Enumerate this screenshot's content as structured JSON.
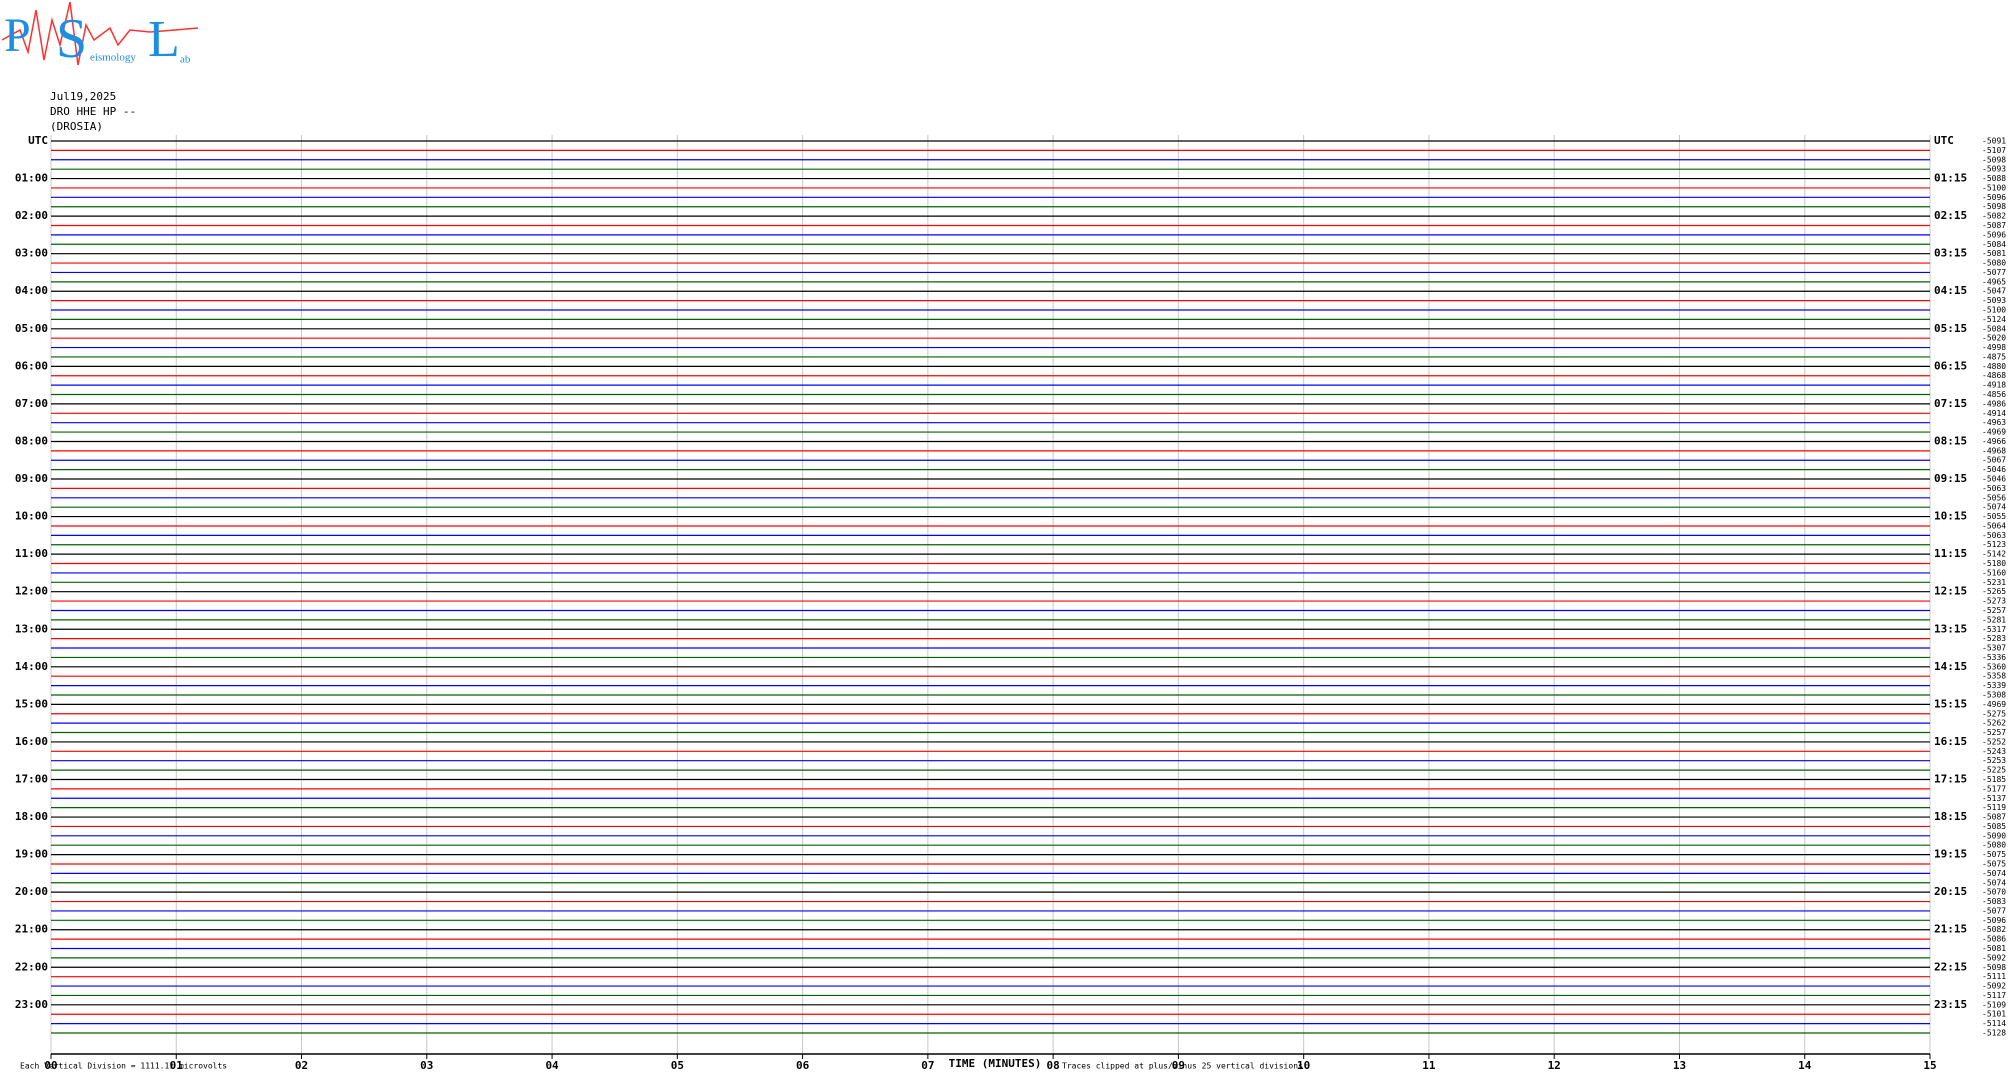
{
  "chart_data": {
    "type": "helicorder",
    "logo": {
      "p": "P",
      "s": "S",
      "l": "L",
      "sub1": "eismology",
      "sub2": "ab"
    },
    "date": "Jul19,2025",
    "station": "DRO HHE HP --",
    "site": "(DROSIA)",
    "left_labels": [
      "UTC",
      "01:00",
      "02:00",
      "03:00",
      "04:00",
      "05:00",
      "06:00",
      "07:00",
      "08:00",
      "09:00",
      "10:00",
      "11:00",
      "12:00",
      "13:00",
      "14:00",
      "15:00",
      "16:00",
      "17:00",
      "18:00",
      "19:00",
      "20:00",
      "21:00",
      "22:00",
      "23:00"
    ],
    "right_labels": [
      "UTC",
      "01:15",
      "02:15",
      "03:15",
      "04:15",
      "05:15",
      "06:15",
      "07:15",
      "08:15",
      "09:15",
      "10:15",
      "11:15",
      "12:15",
      "13:15",
      "14:15",
      "15:15",
      "16:15",
      "17:15",
      "18:15",
      "19:15",
      "20:15",
      "21:15",
      "22:15",
      "23:15"
    ],
    "trace_offsets": [
      -5091,
      -5107,
      -5098,
      -5093,
      -5088,
      -5100,
      -5096,
      -5098,
      -5082,
      -5087,
      -5096,
      -5084,
      -5081,
      -5080,
      -5077,
      -4965,
      -5047,
      -5093,
      -5100,
      -5124,
      -5084,
      -5020,
      -4998,
      -4875,
      -4880,
      -4868,
      -4918,
      -4856,
      -4986,
      -4914,
      -4963,
      -4969,
      -4966,
      -4968,
      -5067,
      -5046,
      -5046,
      -5063,
      -5056,
      -5074,
      -5055,
      -5064,
      -5063,
      -5123,
      -5142,
      -5180,
      -5160,
      -5231,
      -5265,
      -5273,
      -5257,
      -5281,
      -5317,
      -5283,
      -5307,
      -5336,
      -5360,
      -5358,
      -5339,
      -5308,
      -4969,
      -5275,
      -5262,
      -5257,
      -5252,
      -5243,
      -5253,
      -5225,
      -5185,
      -5177,
      -5137,
      -5119,
      -5087,
      -5085,
      -5090,
      -5080,
      -5075,
      -5075,
      -5074,
      -5074,
      -5070,
      -5083,
      -5077,
      -5096,
      -5082,
      -5086,
      -5081,
      -5092,
      -5098,
      -5111,
      -5092,
      -5117,
      -5109,
      -5101,
      -5114,
      -5128
    ],
    "trace_colors": [
      "#000000",
      "#ff0000",
      "#0000ff",
      "#006400"
    ],
    "xticks": [
      "00",
      "01",
      "02",
      "03",
      "04",
      "05",
      "06",
      "07",
      "08",
      "09",
      "10",
      "11",
      "12",
      "13",
      "14",
      "15"
    ],
    "xlabel": "TIME (MINUTES)",
    "scale_note": "Each Vertical Division = 1111.11 microvolts",
    "clip_note": "Traces clipped at plus/minus 25 vertical divisions"
  }
}
